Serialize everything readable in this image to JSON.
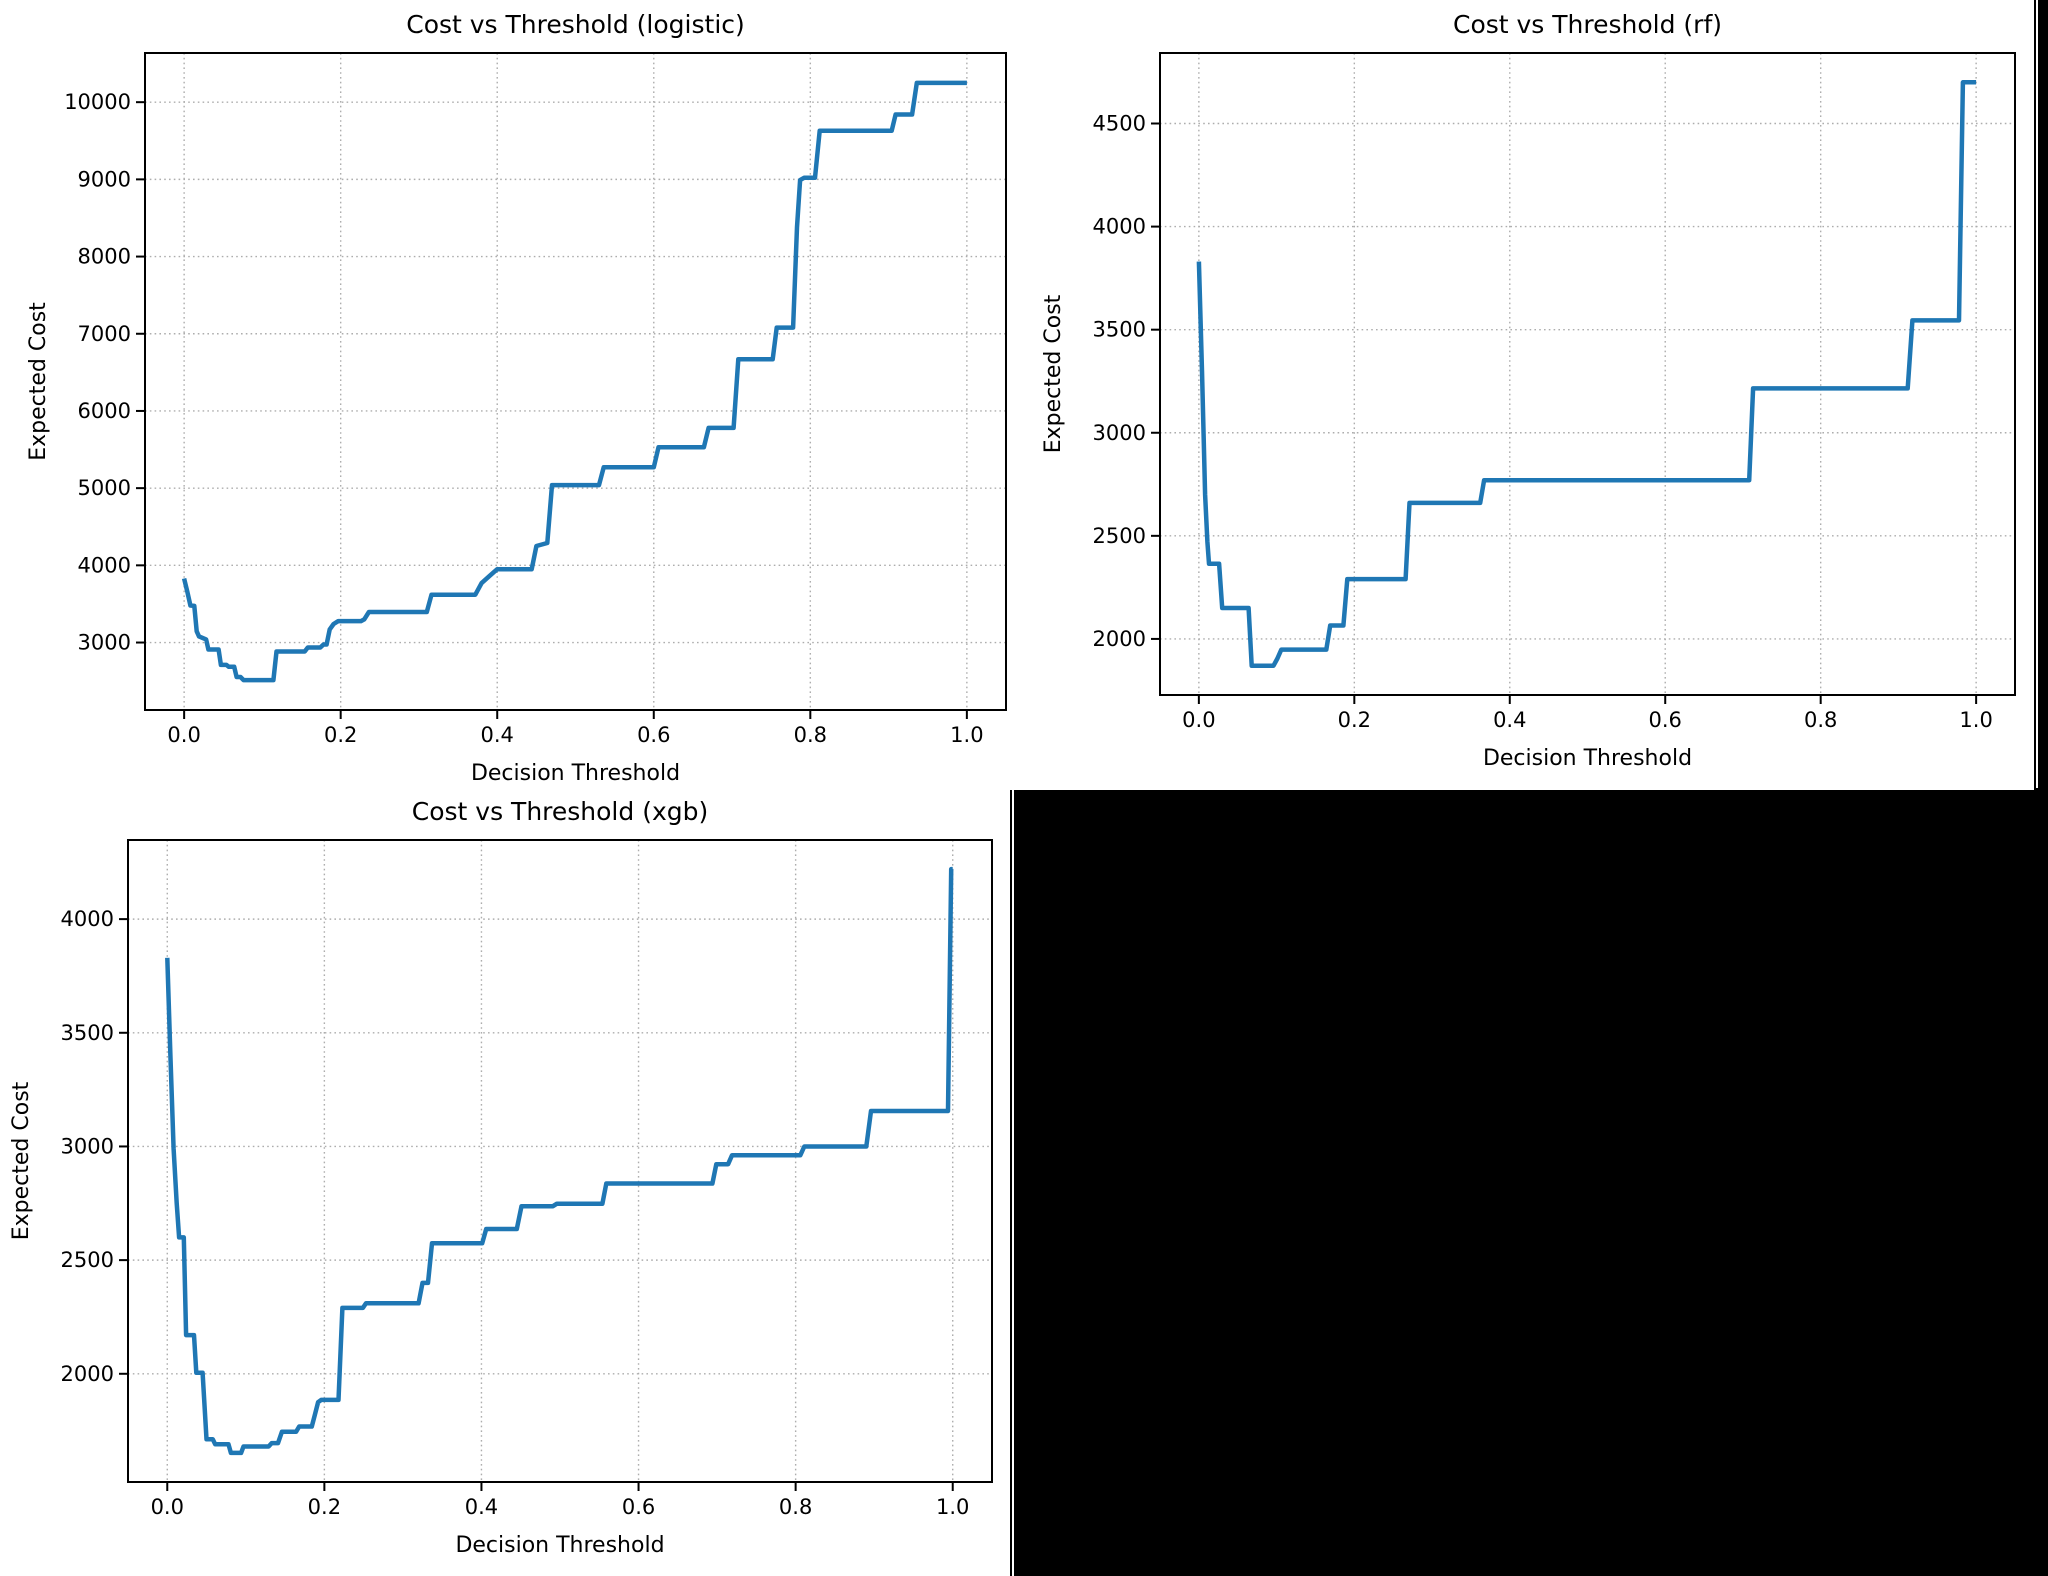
{
  "colors": {
    "page_background": "#000000",
    "figure_background": "#ffffff",
    "line": "#1f77b4",
    "grid": "#adadad",
    "spine": "#000000",
    "text": "#000000"
  },
  "chart_data": [
    {
      "type": "line",
      "id": "logistic",
      "title": "Cost vs Threshold (logistic)",
      "xlabel": "Decision Threshold",
      "ylabel": "Expected Cost",
      "grid": true,
      "legend": null,
      "xlim": [
        -0.05,
        1.05
      ],
      "ylim": [
        2126,
        10637
      ],
      "xticks": [
        0.0,
        0.2,
        0.4,
        0.6,
        0.8,
        1.0
      ],
      "xtick_labels": [
        "0.0",
        "0.2",
        "0.4",
        "0.6",
        "0.8",
        "1.0"
      ],
      "yticks": [
        3000,
        4000,
        5000,
        6000,
        7000,
        8000,
        9000,
        10000
      ],
      "ytick_labels": [
        "3000",
        "4000",
        "5000",
        "6000",
        "7000",
        "8000",
        "9000",
        "10000"
      ],
      "points": [
        [
          0.0,
          3830
        ],
        [
          0.004,
          3660
        ],
        [
          0.008,
          3480
        ],
        [
          0.013,
          3475
        ],
        [
          0.016,
          3145
        ],
        [
          0.019,
          3080
        ],
        [
          0.028,
          3040
        ],
        [
          0.031,
          2910
        ],
        [
          0.044,
          2910
        ],
        [
          0.047,
          2710
        ],
        [
          0.054,
          2710
        ],
        [
          0.057,
          2685
        ],
        [
          0.064,
          2685
        ],
        [
          0.067,
          2553
        ],
        [
          0.072,
          2553
        ],
        [
          0.076,
          2513
        ],
        [
          0.114,
          2513
        ],
        [
          0.118,
          2884
        ],
        [
          0.154,
          2884
        ],
        [
          0.158,
          2935
        ],
        [
          0.174,
          2935
        ],
        [
          0.178,
          2975
        ],
        [
          0.182,
          2975
        ],
        [
          0.186,
          3170
        ],
        [
          0.191,
          3240
        ],
        [
          0.197,
          3277
        ],
        [
          0.226,
          3277
        ],
        [
          0.23,
          3300
        ],
        [
          0.236,
          3395
        ],
        [
          0.31,
          3395
        ],
        [
          0.316,
          3620
        ],
        [
          0.372,
          3620
        ],
        [
          0.38,
          3770
        ],
        [
          0.39,
          3860
        ],
        [
          0.4,
          3950
        ],
        [
          0.444,
          3950
        ],
        [
          0.45,
          4250
        ],
        [
          0.464,
          4290
        ],
        [
          0.47,
          5040
        ],
        [
          0.53,
          5040
        ],
        [
          0.536,
          5270
        ],
        [
          0.6,
          5270
        ],
        [
          0.606,
          5530
        ],
        [
          0.664,
          5530
        ],
        [
          0.67,
          5780
        ],
        [
          0.702,
          5780
        ],
        [
          0.708,
          6670
        ],
        [
          0.752,
          6670
        ],
        [
          0.757,
          7080
        ],
        [
          0.778,
          7080
        ],
        [
          0.783,
          8380
        ],
        [
          0.787,
          8990
        ],
        [
          0.792,
          9020
        ],
        [
          0.806,
          9020
        ],
        [
          0.812,
          9630
        ],
        [
          0.904,
          9630
        ],
        [
          0.909,
          9840
        ],
        [
          0.93,
          9840
        ],
        [
          0.936,
          10250
        ],
        [
          1.0,
          10250
        ]
      ]
    },
    {
      "type": "line",
      "id": "rf",
      "title": "Cost vs Threshold (rf)",
      "xlabel": "Decision Threshold",
      "ylabel": "Expected Cost",
      "grid": true,
      "legend": null,
      "xlim": [
        -0.05,
        1.05
      ],
      "ylim": [
        1728,
        4842
      ],
      "xticks": [
        0.0,
        0.2,
        0.4,
        0.6,
        0.8,
        1.0
      ],
      "xtick_labels": [
        "0.0",
        "0.2",
        "0.4",
        "0.6",
        "0.8",
        "1.0"
      ],
      "yticks": [
        2000,
        2500,
        3000,
        3500,
        4000,
        4500
      ],
      "ytick_labels": [
        "2000",
        "2500",
        "3000",
        "3500",
        "4000",
        "4500"
      ],
      "points": [
        [
          0.0,
          3830
        ],
        [
          0.004,
          3300
        ],
        [
          0.008,
          2700
        ],
        [
          0.011,
          2470
        ],
        [
          0.013,
          2365
        ],
        [
          0.026,
          2365
        ],
        [
          0.03,
          2150
        ],
        [
          0.064,
          2150
        ],
        [
          0.068,
          1870
        ],
        [
          0.096,
          1870
        ],
        [
          0.101,
          1905
        ],
        [
          0.106,
          1948
        ],
        [
          0.164,
          1948
        ],
        [
          0.169,
          2065
        ],
        [
          0.186,
          2065
        ],
        [
          0.191,
          2290
        ],
        [
          0.266,
          2290
        ],
        [
          0.271,
          2660
        ],
        [
          0.362,
          2660
        ],
        [
          0.367,
          2770
        ],
        [
          0.708,
          2770
        ],
        [
          0.713,
          3215
        ],
        [
          0.912,
          3215
        ],
        [
          0.918,
          3545
        ],
        [
          0.978,
          3545
        ],
        [
          0.983,
          4700
        ],
        [
          1.0,
          4700
        ]
      ]
    },
    {
      "type": "line",
      "id": "xgb",
      "title": "Cost vs Threshold (xgb)",
      "xlabel": "Decision Threshold",
      "ylabel": "Expected Cost",
      "grid": true,
      "legend": null,
      "xlim": [
        -0.05,
        1.05
      ],
      "ylim": [
        1524,
        4348
      ],
      "xticks": [
        0.0,
        0.2,
        0.4,
        0.6,
        0.8,
        1.0
      ],
      "xtick_labels": [
        "0.0",
        "0.2",
        "0.4",
        "0.6",
        "0.8",
        "1.0"
      ],
      "yticks": [
        2000,
        2500,
        3000,
        3500,
        4000
      ],
      "ytick_labels": [
        "2000",
        "2500",
        "3000",
        "3500",
        "4000"
      ],
      "points": [
        [
          0.0,
          3830
        ],
        [
          0.004,
          3400
        ],
        [
          0.008,
          2990
        ],
        [
          0.012,
          2750
        ],
        [
          0.015,
          2600
        ],
        [
          0.021,
          2600
        ],
        [
          0.024,
          2170
        ],
        [
          0.034,
          2170
        ],
        [
          0.037,
          2005
        ],
        [
          0.045,
          2005
        ],
        [
          0.05,
          1712
        ],
        [
          0.058,
          1712
        ],
        [
          0.061,
          1690
        ],
        [
          0.078,
          1690
        ],
        [
          0.081,
          1652
        ],
        [
          0.094,
          1652
        ],
        [
          0.097,
          1680
        ],
        [
          0.129,
          1680
        ],
        [
          0.133,
          1695
        ],
        [
          0.141,
          1695
        ],
        [
          0.146,
          1745
        ],
        [
          0.164,
          1745
        ],
        [
          0.168,
          1768
        ],
        [
          0.184,
          1768
        ],
        [
          0.188,
          1820
        ],
        [
          0.192,
          1875
        ],
        [
          0.196,
          1885
        ],
        [
          0.218,
          1885
        ],
        [
          0.223,
          2290
        ],
        [
          0.249,
          2290
        ],
        [
          0.253,
          2310
        ],
        [
          0.32,
          2310
        ],
        [
          0.325,
          2400
        ],
        [
          0.332,
          2400
        ],
        [
          0.337,
          2574
        ],
        [
          0.401,
          2574
        ],
        [
          0.406,
          2637
        ],
        [
          0.445,
          2637
        ],
        [
          0.451,
          2737
        ],
        [
          0.491,
          2737
        ],
        [
          0.496,
          2748
        ],
        [
          0.554,
          2748
        ],
        [
          0.559,
          2837
        ],
        [
          0.694,
          2837
        ],
        [
          0.699,
          2922
        ],
        [
          0.714,
          2922
        ],
        [
          0.719,
          2961
        ],
        [
          0.806,
          2961
        ],
        [
          0.811,
          3000
        ],
        [
          0.89,
          3000
        ],
        [
          0.896,
          3156
        ],
        [
          0.994,
          3156
        ],
        [
          0.998,
          4220
        ],
        [
          1.0,
          4220
        ]
      ]
    }
  ]
}
